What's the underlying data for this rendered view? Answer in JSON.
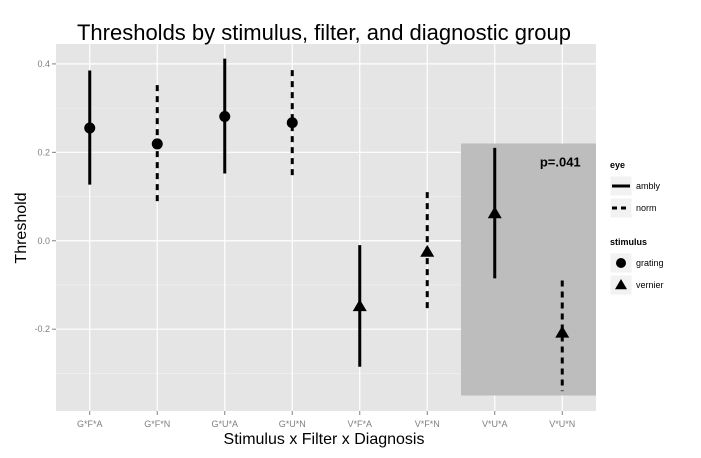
{
  "chart_data": {
    "type": "errorbar",
    "title": "Thresholds by stimulus, filter, and diagnostic group",
    "xlabel": "Stimulus x Filter x Diagnosis",
    "ylabel": "Threshold",
    "ylim": [
      -0.385,
      0.445
    ],
    "y_ticks": [
      "0.4",
      "0.2",
      "0.0",
      "-0.2"
    ],
    "y_tick_values": [
      0.4,
      0.2,
      0.0,
      -0.2
    ],
    "categories": [
      "G*F*A",
      "G*F*N",
      "G*U*A",
      "G*U*N",
      "V*F*A",
      "V*F*N",
      "V*U*A",
      "V*U*N"
    ],
    "points": [
      {
        "category": "G*F*A",
        "y": 0.255,
        "lower": 0.127,
        "upper": 0.385,
        "eye": "ambly",
        "stimulus": "grating"
      },
      {
        "category": "G*F*N",
        "y": 0.219,
        "lower": 0.087,
        "upper": 0.352,
        "eye": "norm",
        "stimulus": "grating"
      },
      {
        "category": "G*U*A",
        "y": 0.281,
        "lower": 0.152,
        "upper": 0.412,
        "eye": "ambly",
        "stimulus": "grating"
      },
      {
        "category": "G*U*N",
        "y": 0.267,
        "lower": 0.14,
        "upper": 0.386,
        "eye": "norm",
        "stimulus": "grating"
      },
      {
        "category": "V*F*A",
        "y": -0.148,
        "lower": -0.285,
        "upper": -0.01,
        "eye": "ambly",
        "stimulus": "vernier"
      },
      {
        "category": "V*F*N",
        "y": -0.025,
        "lower": -0.16,
        "upper": 0.11,
        "eye": "norm",
        "stimulus": "vernier"
      },
      {
        "category": "V*U*A",
        "y": 0.062,
        "lower": -0.085,
        "upper": 0.21,
        "eye": "ambly",
        "stimulus": "vernier"
      },
      {
        "category": "V*U*N",
        "y": -0.208,
        "lower": -0.34,
        "upper": -0.09,
        "eye": "norm",
        "stimulus": "vernier"
      }
    ],
    "highlight": {
      "from_category": "V*U*A",
      "to_category": "V*U*N",
      "y_range": [
        -0.35,
        0.22
      ],
      "color": "#bdbdbd",
      "label": "p=.041"
    },
    "legend": {
      "placement": "right",
      "eye": {
        "title": "eye",
        "items": [
          {
            "label": "ambly",
            "linetype": "solid"
          },
          {
            "label": "norm",
            "linetype": "dashed"
          }
        ]
      },
      "stimulus": {
        "title": "stimulus",
        "items": [
          {
            "label": "grating",
            "shape": "circle"
          },
          {
            "label": "vernier",
            "shape": "triangle"
          }
        ]
      }
    },
    "grid": true,
    "colors": {
      "panel": "#e5e5e5",
      "grid": "#ffffff",
      "marks": "#000000",
      "tick_text": "#7f7f7f"
    }
  }
}
